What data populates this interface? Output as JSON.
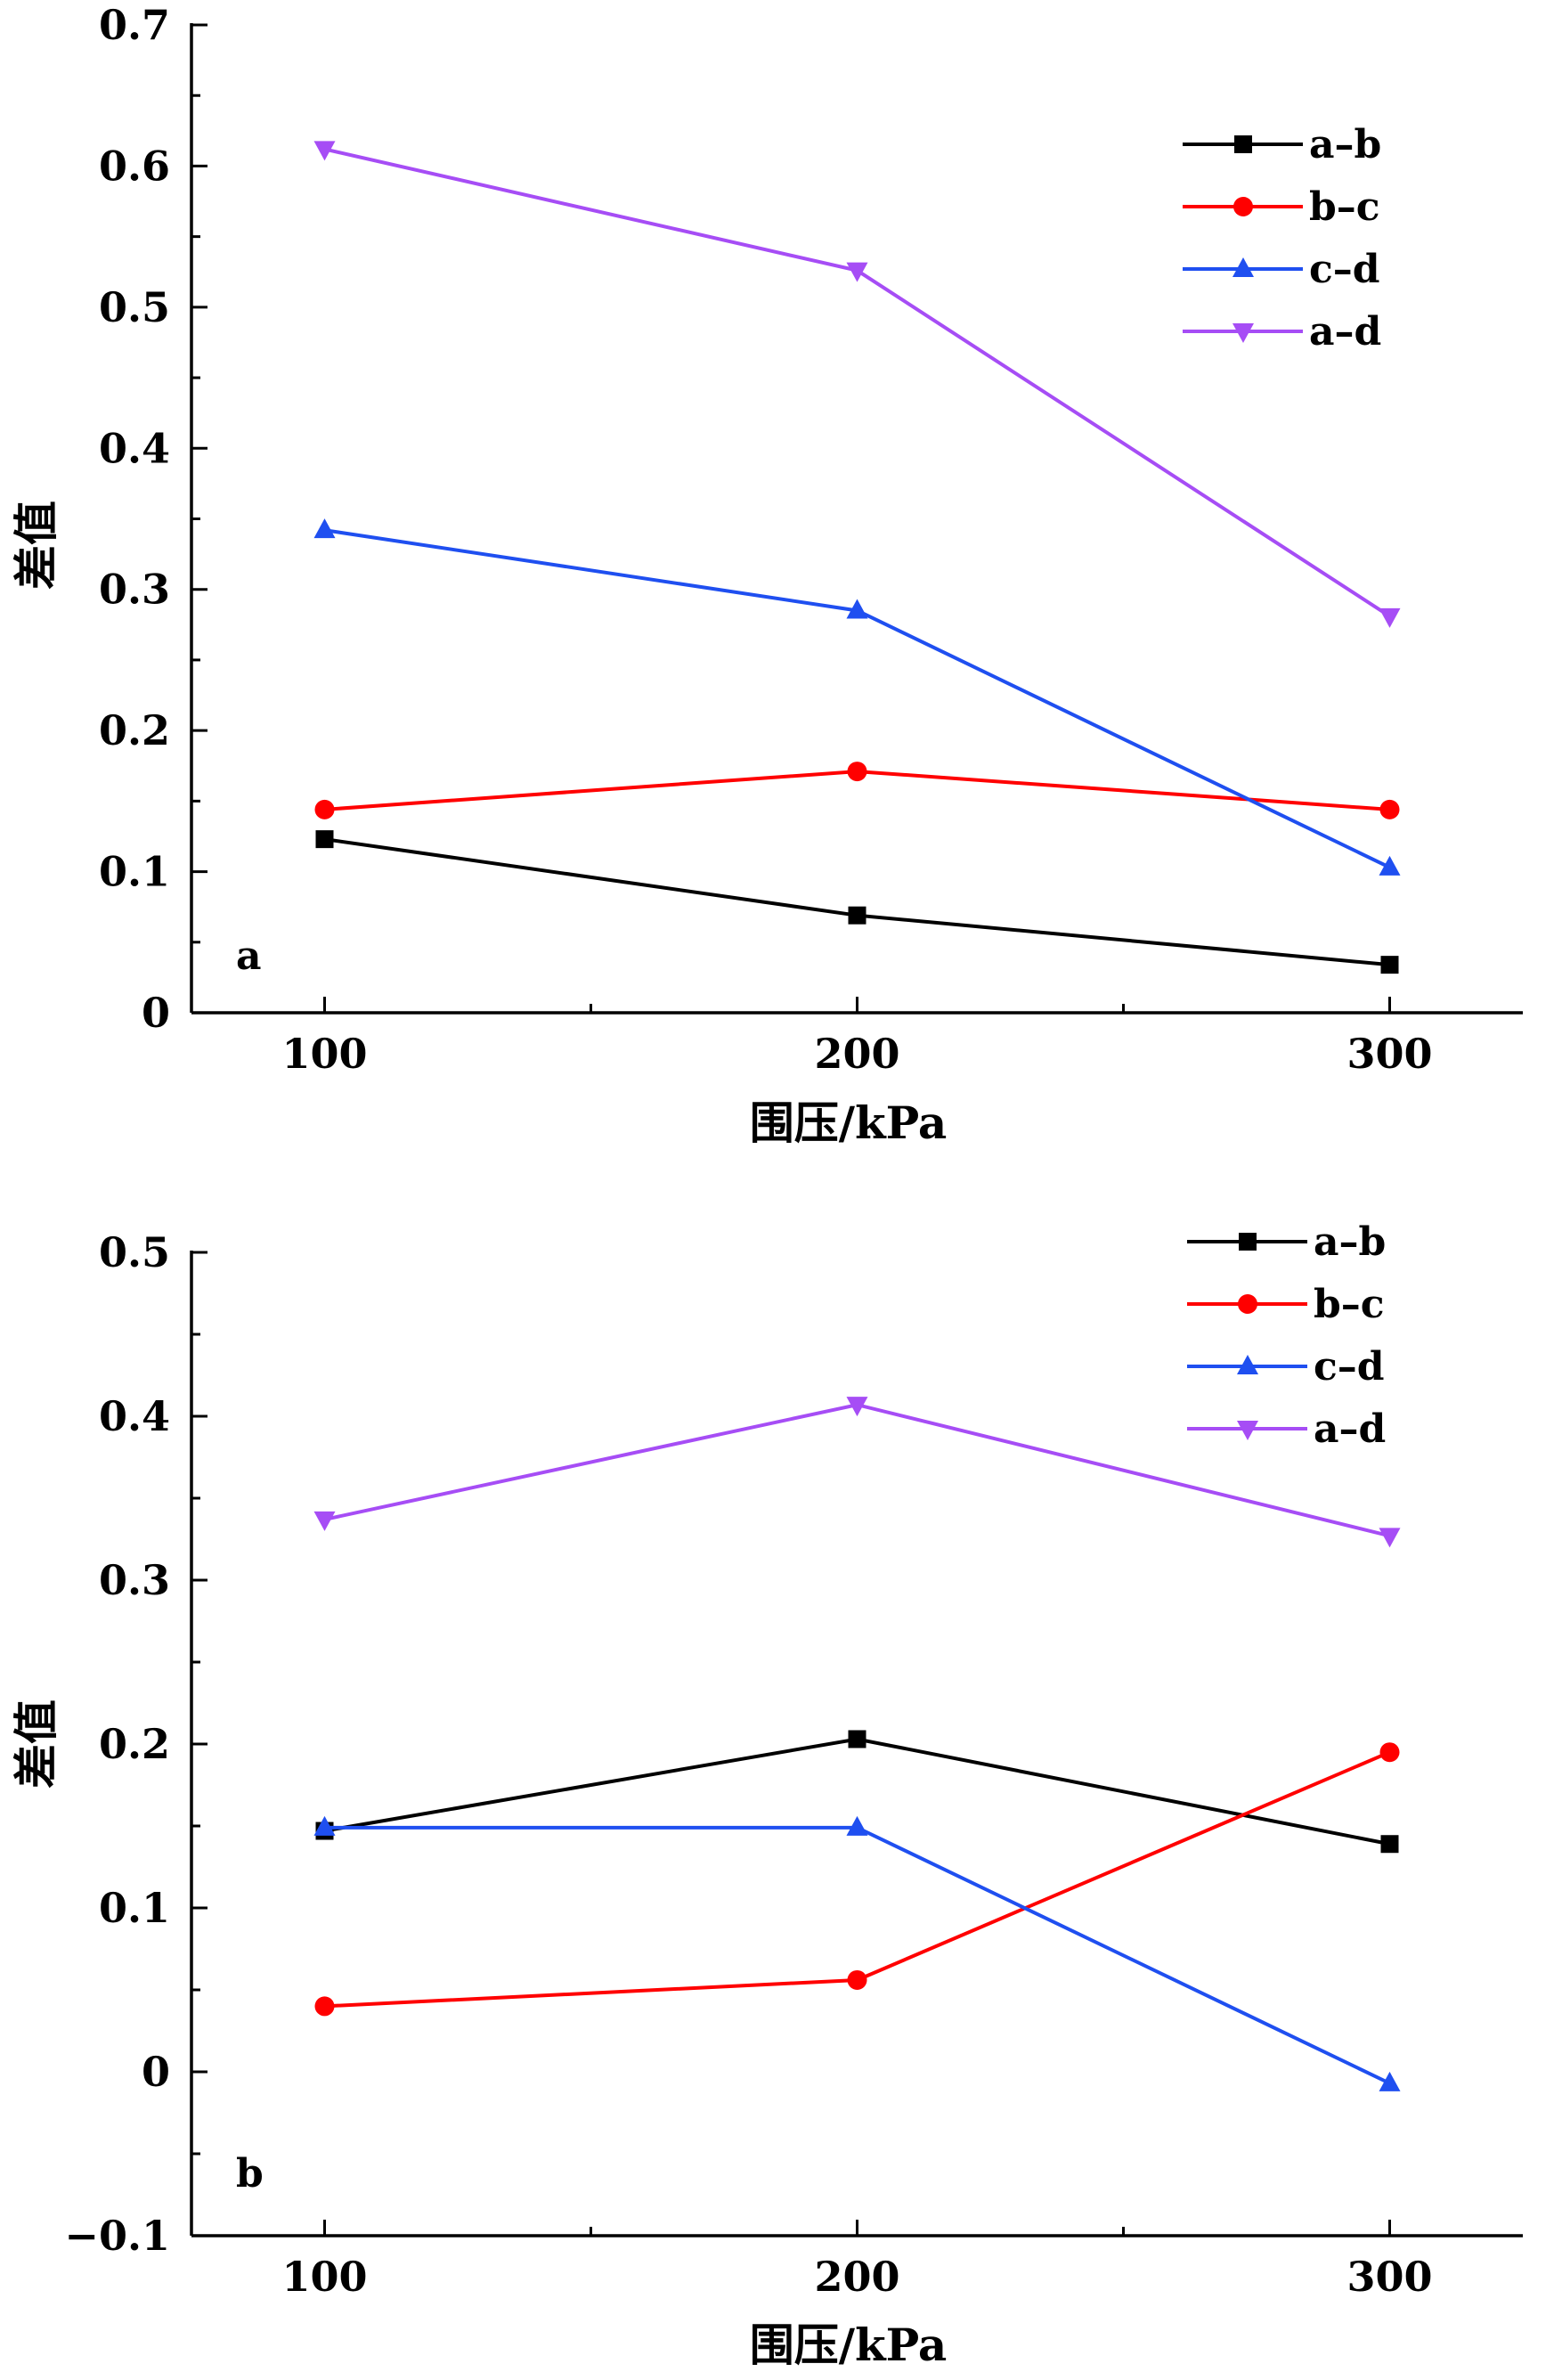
{
  "chart_data": [
    {
      "type": "line",
      "panel_label": "a",
      "xlabel": "围压/kPa",
      "ylabel": "差值",
      "x": [
        100,
        200,
        300
      ],
      "x_tick_labels": [
        "100",
        "200",
        "300"
      ],
      "xlim": [
        75,
        325
      ],
      "ylim": [
        0,
        0.7
      ],
      "y_ticks": [
        0,
        0.1,
        0.2,
        0.3,
        0.4,
        0.5,
        0.6,
        0.7
      ],
      "y_tick_labels": [
        "0",
        "0.1",
        "0.2",
        "0.3",
        "0.4",
        "0.5",
        "0.6",
        "0.7"
      ],
      "legend_position": "top-right",
      "grid": false,
      "series": [
        {
          "name": "a–b",
          "color": "#000000",
          "marker": "square",
          "values": [
            0.123,
            0.069,
            0.034
          ]
        },
        {
          "name": "b–c",
          "color": "#ff0000",
          "marker": "circle",
          "values": [
            0.144,
            0.171,
            0.144
          ]
        },
        {
          "name": "c–d",
          "color": "#1f4ff0",
          "marker": "triangle-up",
          "values": [
            0.342,
            0.285,
            0.103
          ]
        },
        {
          "name": "a–d",
          "color": "#a64df5",
          "marker": "triangle-down",
          "values": [
            0.612,
            0.526,
            0.281
          ]
        }
      ]
    },
    {
      "type": "line",
      "panel_label": "b",
      "xlabel": "围压/kPa",
      "ylabel": "差值",
      "x": [
        100,
        200,
        300
      ],
      "x_tick_labels": [
        "100",
        "200",
        "300"
      ],
      "xlim": [
        75,
        325
      ],
      "ylim": [
        -0.1,
        0.5
      ],
      "y_ticks": [
        -0.1,
        0,
        0.1,
        0.2,
        0.3,
        0.4,
        0.5
      ],
      "y_tick_labels": [
        "−0.1",
        "0",
        "0.1",
        "0.2",
        "0.3",
        "0.4",
        "0.5"
      ],
      "legend_position": "top-right",
      "grid": false,
      "series": [
        {
          "name": "a–b",
          "color": "#000000",
          "marker": "square",
          "values": [
            0.147,
            0.203,
            0.139
          ]
        },
        {
          "name": "b–c",
          "color": "#ff0000",
          "marker": "circle",
          "values": [
            0.04,
            0.056,
            0.195
          ]
        },
        {
          "name": "c–d",
          "color": "#1f4ff0",
          "marker": "triangle-up",
          "values": [
            0.149,
            0.149,
            -0.007
          ]
        },
        {
          "name": "a–d",
          "color": "#a64df5",
          "marker": "triangle-down",
          "values": [
            0.337,
            0.407,
            0.327
          ]
        }
      ]
    }
  ]
}
